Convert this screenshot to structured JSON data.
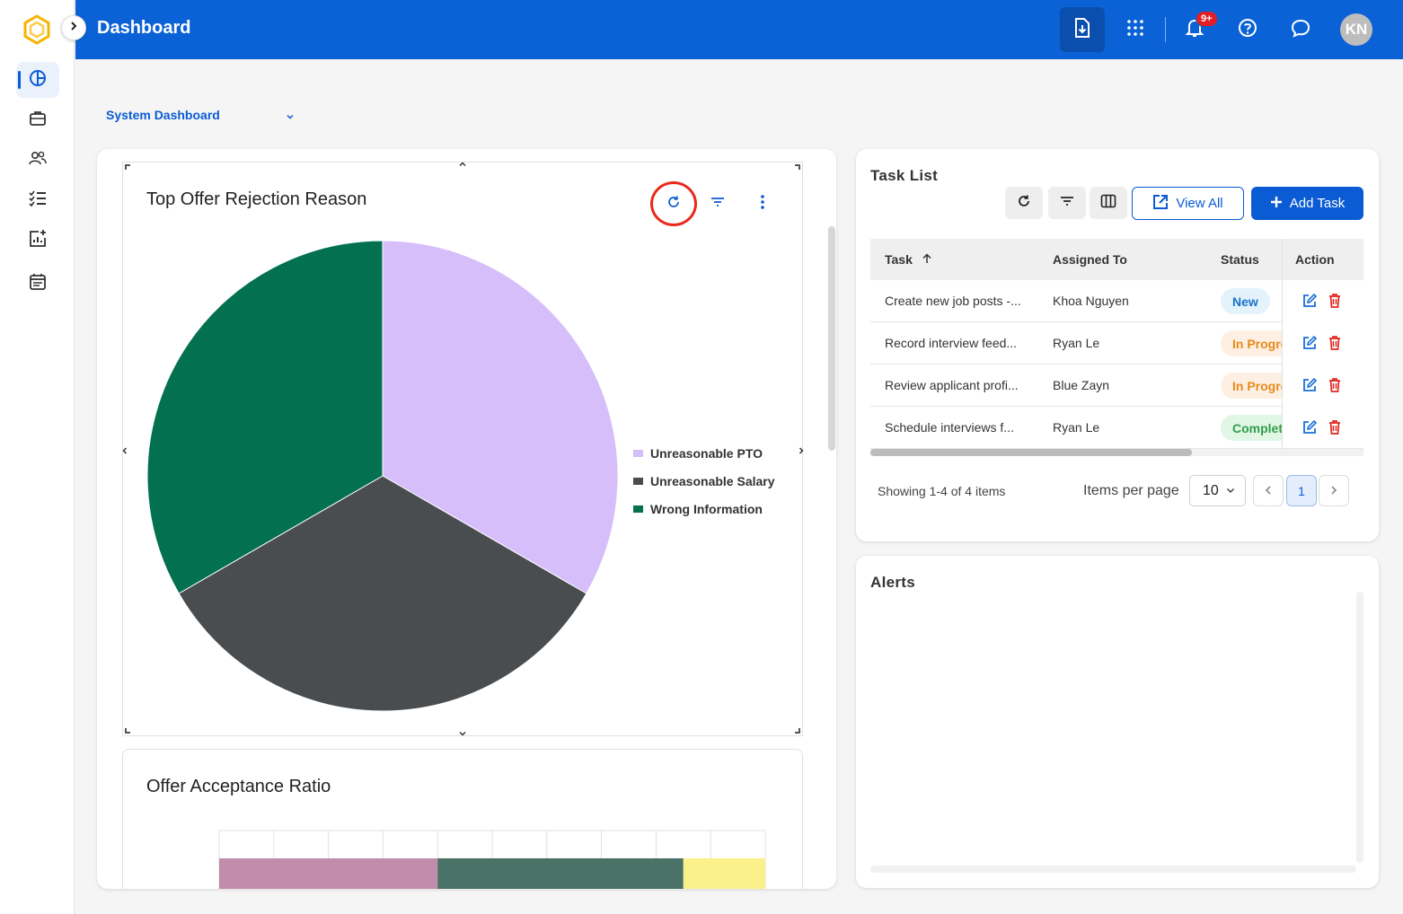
{
  "header": {
    "title": "Dashboard",
    "notification_count": "9+",
    "avatar_initials": "KN"
  },
  "dashboard_selector": {
    "value": "System Dashboard"
  },
  "widgets": {
    "rejection": {
      "title": "Top Offer Rejection Reason",
      "legend": [
        {
          "label": "Unreasonable PTO",
          "color": "#d5befa"
        },
        {
          "label": "Unreasonable Salary",
          "color": "#4a4d50"
        },
        {
          "label": "Wrong Information",
          "color": "#03704f"
        }
      ]
    },
    "acceptance": {
      "title": "Offer Acceptance Ratio"
    }
  },
  "chart_data": [
    {
      "type": "pie",
      "title": "Top Offer Rejection Reason",
      "labels": [
        "Unreasonable PTO",
        "Unreasonable Salary",
        "Wrong Information"
      ],
      "values": [
        1,
        1,
        1
      ],
      "colors": [
        "#d5befa",
        "#4a4d50",
        "#03704f"
      ],
      "legend": "right"
    },
    {
      "type": "bar",
      "title": "Offer Acceptance Ratio",
      "stacked": true,
      "orientation": "horizontal",
      "segments": [
        0.4,
        0.45,
        0.15
      ],
      "colors": [
        "#c28dad",
        "#4a7266",
        "#faf18c"
      ]
    }
  ],
  "task_list": {
    "title": "Task List",
    "view_all_label": "View All",
    "add_task_label": "Add Task",
    "columns": {
      "task": "Task",
      "assigned_to": "Assigned To",
      "status": "Status",
      "action": "Action"
    },
    "rows": [
      {
        "task": "Create new job posts -...",
        "assigned_to": "Khoa Nguyen",
        "status": "New",
        "status_bg": "#e3f2fb",
        "status_color": "#1a73c8"
      },
      {
        "task": "Record interview feed...",
        "assigned_to": "Ryan Le",
        "status": "In Progress",
        "status_bg": "#fdf0e2",
        "status_color": "#e8891c"
      },
      {
        "task": "Review applicant profi...",
        "assigned_to": "Blue Zayn",
        "status": "In Progress",
        "status_bg": "#fdf0e2",
        "status_color": "#e8891c"
      },
      {
        "task": "Schedule interviews f...",
        "assigned_to": "Ryan Le",
        "status": "Completed",
        "status_bg": "#e2f6e6",
        "status_color": "#2f9e4a"
      }
    ],
    "pagination": {
      "showing": "Showing 1-4 of 4 items",
      "items_per_page_label": "Items per page",
      "items_per_page": "10",
      "current_page": "1"
    }
  },
  "alerts": {
    "title": "Alerts"
  }
}
